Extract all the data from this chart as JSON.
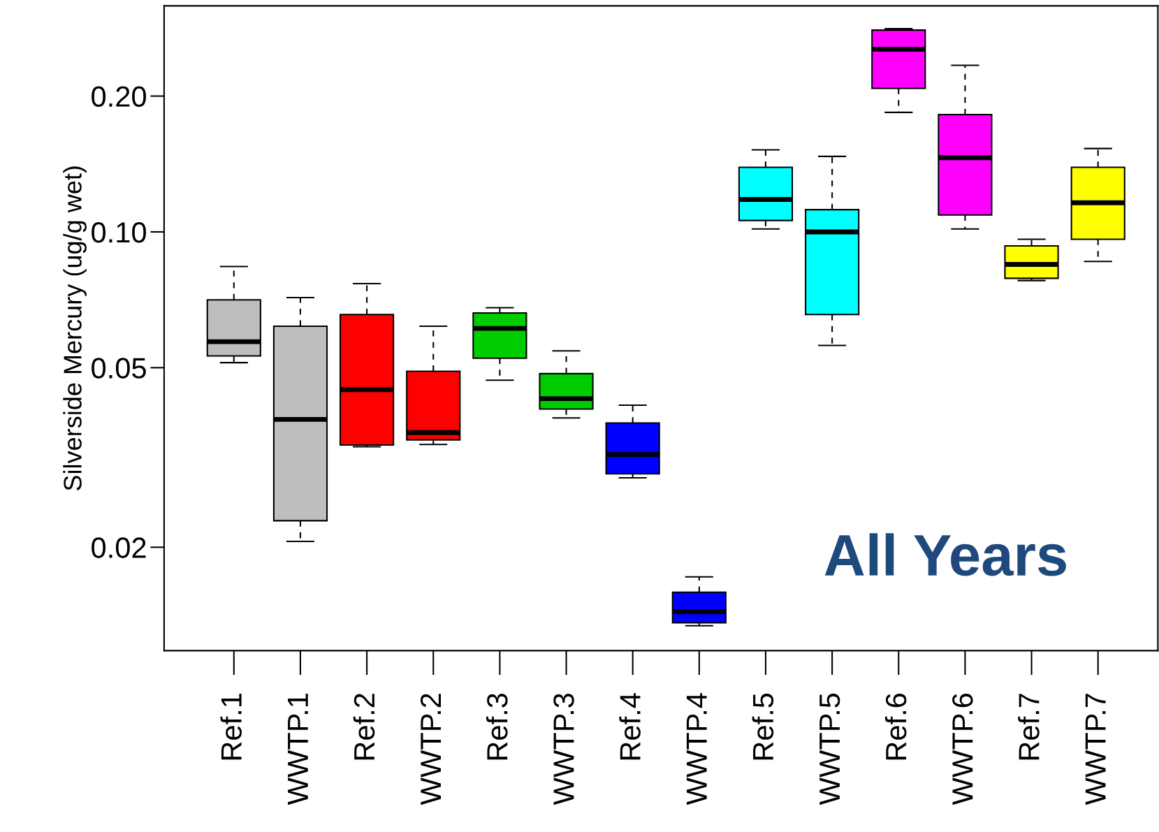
{
  "chart_data": {
    "type": "box",
    "ylabel": "Silverside Mercury (ug/g wet)",
    "log": "y",
    "grid": false,
    "categories": [
      "Ref.1",
      "WWTP.1",
      "Ref.2",
      "WWTP.2",
      "Ref.3",
      "WWTP.3",
      "Ref.4",
      "WWTP.4",
      "Ref.5",
      "WWTP.5",
      "Ref.6",
      "WWTP.6",
      "Ref.7",
      "WWTP.7"
    ],
    "colors": [
      "#bebebe",
      "#bebebe",
      "#ff0000",
      "#ff0000",
      "#00cd00",
      "#00cd00",
      "#0000ff",
      "#0000ff",
      "#00ffff",
      "#00ffff",
      "#ff00ff",
      "#ff00ff",
      "#ffff00",
      "#ffff00"
    ],
    "boxes": [
      {
        "low": 0.0513,
        "q1": 0.0531,
        "median": 0.0571,
        "q3": 0.0707,
        "high": 0.0838
      },
      {
        "low": 0.0206,
        "q1": 0.0229,
        "median": 0.0384,
        "q3": 0.0618,
        "high": 0.0715
      },
      {
        "low": 0.0334,
        "q1": 0.0337,
        "median": 0.0447,
        "q3": 0.0656,
        "high": 0.0768
      },
      {
        "low": 0.0338,
        "q1": 0.0346,
        "median": 0.0359,
        "q3": 0.0491,
        "high": 0.0618
      },
      {
        "low": 0.0469,
        "q1": 0.0525,
        "median": 0.0611,
        "q3": 0.0661,
        "high": 0.0679
      },
      {
        "low": 0.0387,
        "q1": 0.0405,
        "median": 0.0427,
        "q3": 0.0485,
        "high": 0.0545
      },
      {
        "low": 0.0285,
        "q1": 0.0291,
        "median": 0.0321,
        "q3": 0.0377,
        "high": 0.0413
      },
      {
        "low": 0.0134,
        "q1": 0.0136,
        "median": 0.0144,
        "q3": 0.0159,
        "high": 0.0172
      },
      {
        "low": 0.1015,
        "q1": 0.106,
        "median": 0.118,
        "q3": 0.139,
        "high": 0.152
      },
      {
        "low": 0.056,
        "q1": 0.0656,
        "median": 0.1,
        "q3": 0.112,
        "high": 0.147
      },
      {
        "low": 0.184,
        "q1": 0.208,
        "median": 0.254,
        "q3": 0.28,
        "high": 0.282
      },
      {
        "low": 0.1015,
        "q1": 0.109,
        "median": 0.146,
        "q3": 0.182,
        "high": 0.234
      },
      {
        "low": 0.078,
        "q1": 0.0789,
        "median": 0.0847,
        "q3": 0.0931,
        "high": 0.0963
      },
      {
        "low": 0.086,
        "q1": 0.0963,
        "median": 0.116,
        "q3": 0.139,
        "high": 0.153
      }
    ],
    "ylim": [
      0.0118,
      0.317
    ],
    "yticks": [
      0.02,
      0.05,
      {
        "value": 0.1,
        "label": "0.10"
      },
      {
        "value": 0.2,
        "label": "0.20"
      }
    ],
    "annotations": [
      "All Years"
    ]
  }
}
